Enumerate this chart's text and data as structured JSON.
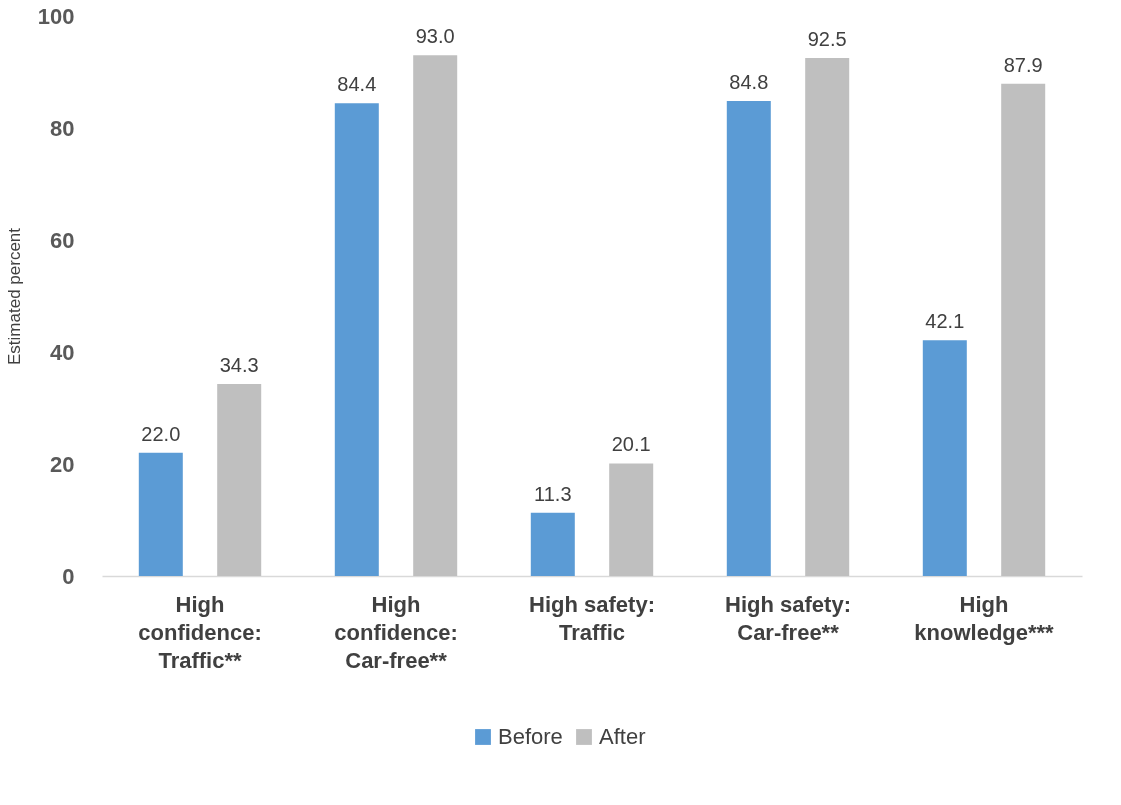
{
  "chart_data": {
    "type": "bar",
    "ylabel": "Estimated percent",
    "categories": [
      "High confidence: Traffic**",
      "High confidence: Car-free**",
      "High safety: Traffic",
      "High safety: Car-free**",
      "High knowledge***"
    ],
    "series": [
      {
        "name": "Before",
        "color": "#5b9bd5",
        "values": [
          22.0,
          84.4,
          11.3,
          84.8,
          42.1
        ],
        "value_labels": [
          "22.0",
          "84.4",
          "11.3",
          "84.8",
          "42.1"
        ]
      },
      {
        "name": "After",
        "color": "#bfbfbf",
        "values": [
          34.3,
          93.0,
          20.1,
          92.5,
          87.9
        ],
        "value_labels": [
          "34.3",
          "93.0",
          "20.1",
          "92.5",
          "87.9"
        ]
      }
    ],
    "ylim": [
      0,
      100
    ],
    "yticks": [
      0,
      20,
      40,
      60,
      80,
      100
    ],
    "grid": false,
    "legend": "bottom"
  }
}
